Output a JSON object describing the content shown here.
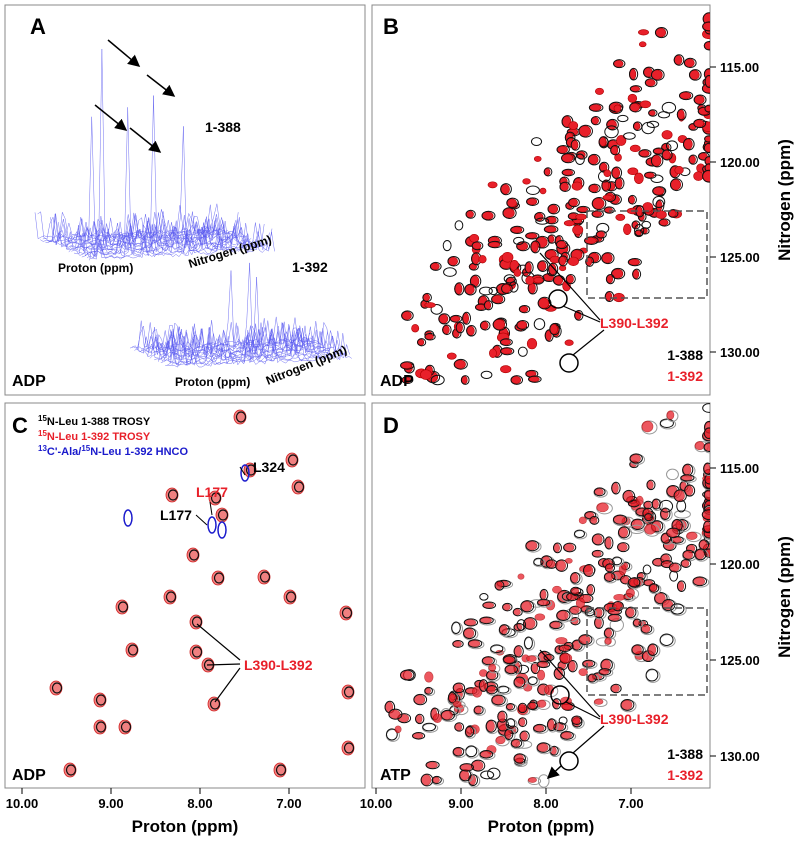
{
  "axes": {
    "nitrogen_label": "Nitrogen (ppm)",
    "proton_label": "Proton (ppm)",
    "nitrogen_ticks": [
      "115.00",
      "120.00",
      "125.00",
      "130.00"
    ],
    "proton_ticks": [
      "10.00",
      "9.00",
      "8.00",
      "7.00"
    ]
  },
  "panels": [
    {
      "letter": "A",
      "condition": "ADP",
      "labels": [
        "1-388",
        "1-392"
      ]
    },
    {
      "letter": "B",
      "condition": "ADP",
      "annotation": "L390-L392",
      "legend": [
        "1-388",
        "1-392"
      ]
    },
    {
      "letter": "C",
      "condition": "ADP",
      "legend": [
        [
          "15",
          "N-Leu 1-388 TROSY"
        ],
        [
          "15",
          "N-Leu 1-392 TROSY"
        ],
        [
          "13",
          "C'-Ala/",
          "15",
          "N-Leu 1-392 HNCO"
        ]
      ],
      "annotations": [
        "L324",
        "L177",
        "L177",
        "L390-L392"
      ]
    },
    {
      "letter": "D",
      "condition": "ATP",
      "annotation": "L390-L392",
      "legend": [
        "1-388",
        "1-392"
      ]
    }
  ]
}
